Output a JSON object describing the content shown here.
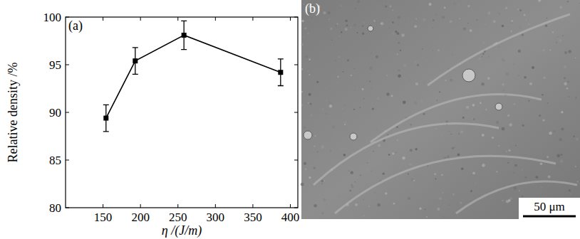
{
  "chart_data": {
    "type": "line",
    "annotations": [
      "(a)"
    ],
    "x_label": "η /(J/m)",
    "y_label": "Relative density /%",
    "x": [
      154,
      193,
      258,
      387
    ],
    "values": [
      89.4,
      95.4,
      98.1,
      94.2
    ],
    "errors": [
      1.4,
      1.4,
      1.5,
      1.4
    ],
    "color": "#000000",
    "marker": "square",
    "line_style": "solid",
    "xlim": [
      100,
      410
    ],
    "xticks": [
      150,
      200,
      250,
      300,
      350,
      400
    ],
    "ylim": [
      80,
      100
    ],
    "yticks": [
      80,
      85,
      90,
      95,
      100
    ],
    "grid": false
  },
  "micrograph": {
    "label": "(b)",
    "scale_bar": "50 μm"
  }
}
